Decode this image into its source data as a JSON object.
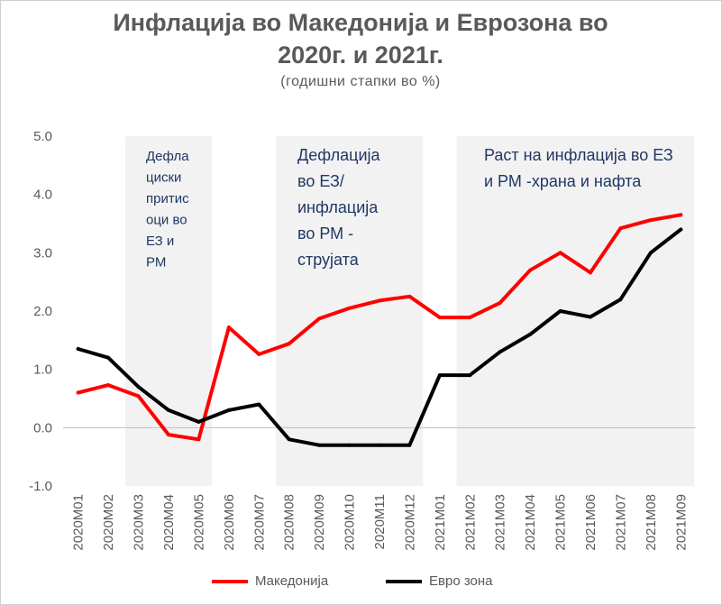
{
  "title_line1": "Инфлација во Македонија и Еврозона во",
  "title_line2": "2020г. и 2021г.",
  "subtitle": "(годишни стапки во %)",
  "chart_data": {
    "type": "line",
    "categories": [
      "2020M01",
      "2020M02",
      "2020M03",
      "2020M04",
      "2020M05",
      "2020M06",
      "2020M07",
      "2020M08",
      "2020M09",
      "2020M10",
      "2020M11",
      "2020M12",
      "2021M01",
      "2021M02",
      "2021M03",
      "2021M04",
      "2021M05",
      "2021M06",
      "2021M07",
      "2021M08",
      "2021M09"
    ],
    "series": [
      {
        "name": "Македонија",
        "color": "#ff0000",
        "values": [
          0.6,
          0.73,
          0.54,
          -0.12,
          -0.2,
          1.72,
          1.26,
          1.44,
          1.87,
          2.05,
          2.18,
          2.25,
          1.89,
          1.89,
          2.14,
          2.7,
          3.0,
          2.66,
          3.42,
          3.56,
          3.65
        ]
      },
      {
        "name": "Евро зона",
        "color": "#000000",
        "values": [
          1.35,
          1.2,
          0.7,
          0.3,
          0.1,
          0.3,
          0.4,
          -0.2,
          -0.3,
          -0.3,
          -0.3,
          -0.3,
          0.9,
          0.9,
          1.3,
          1.6,
          2.0,
          1.9,
          2.2,
          3.0,
          3.4
        ]
      }
    ],
    "ylim": [
      -1.0,
      5.0
    ],
    "yticks": [
      "5.0",
      "4.0",
      "3.0",
      "2.0",
      "1.0",
      "0.0",
      "-1.0"
    ],
    "ytick_values": [
      5,
      4,
      3,
      2,
      1,
      0,
      -1
    ],
    "shaded_regions": [
      {
        "from": "2020M03",
        "to": "2020M05",
        "label_lines": [
          "Дефла",
          "циски",
          "притис",
          "оци во",
          "ЕЗ и",
          "РМ"
        ]
      },
      {
        "from": "2020M08",
        "to": "2020M12",
        "label_lines": [
          "Дефлација",
          "во ЕЗ/",
          "инфлација",
          "во РМ -",
          "струјата"
        ]
      },
      {
        "from": "2021M02",
        "to": "2021M09",
        "label_lines": [
          "Раст на инфлација во ЕЗ",
          "и РМ -храна и нафта"
        ]
      }
    ],
    "grid": false,
    "legend_position": "bottom"
  }
}
